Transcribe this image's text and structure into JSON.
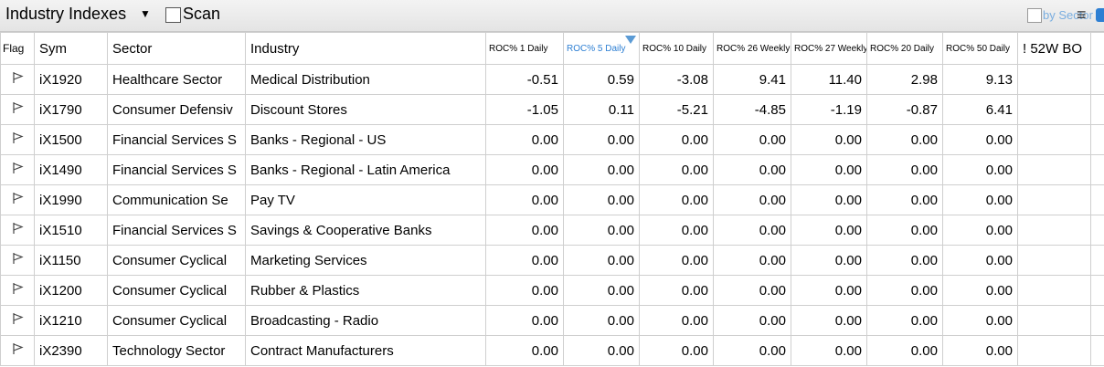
{
  "header": {
    "title": "Industry Indexes",
    "scan_label": "Scan",
    "by_sector_label": "by Sector"
  },
  "icons": {
    "caret": "dropdown-caret-icon",
    "menu": "menu-icon",
    "app": "blue-app-icon"
  },
  "colors": {
    "accent": "#2d7fd3",
    "by_sector": "#7aaee0"
  },
  "columns": {
    "flag": "Flag",
    "sym": "Sym",
    "sector": "Sector",
    "industry": "Industry",
    "roc1d": "ROC% 1 Daily",
    "roc5d": "ROC% 5 Daily",
    "roc10d": "ROC% 10 Daily",
    "roc26w": "ROC% 26 Weekly",
    "roc27w": "ROC% 27 Weekly",
    "roc20d": "ROC% 20 Daily",
    "roc50d": "ROC% 50 Daily",
    "bo52w": "! 52W BO"
  },
  "rows": [
    {
      "sym": "iX1920",
      "sector": "Healthcare Sector",
      "industry": "Medical Distribution",
      "roc1d": "-0.51",
      "roc5d": "0.59",
      "roc10d": "-3.08",
      "roc26w": "9.41",
      "roc27w": "11.40",
      "roc20d": "2.98",
      "roc50d": "9.13"
    },
    {
      "sym": "iX1790",
      "sector": "Consumer Defensiv",
      "industry": "Discount Stores",
      "roc1d": "-1.05",
      "roc5d": "0.11",
      "roc10d": "-5.21",
      "roc26w": "-4.85",
      "roc27w": "-1.19",
      "roc20d": "-0.87",
      "roc50d": "6.41"
    },
    {
      "sym": "iX1500",
      "sector": "Financial Services S",
      "industry": "Banks - Regional - US",
      "roc1d": "0.00",
      "roc5d": "0.00",
      "roc10d": "0.00",
      "roc26w": "0.00",
      "roc27w": "0.00",
      "roc20d": "0.00",
      "roc50d": "0.00"
    },
    {
      "sym": "iX1490",
      "sector": "Financial Services S",
      "industry": "Banks - Regional - Latin America",
      "roc1d": "0.00",
      "roc5d": "0.00",
      "roc10d": "0.00",
      "roc26w": "0.00",
      "roc27w": "0.00",
      "roc20d": "0.00",
      "roc50d": "0.00"
    },
    {
      "sym": "iX1990",
      "sector": "Communication Se",
      "industry": "Pay TV",
      "roc1d": "0.00",
      "roc5d": "0.00",
      "roc10d": "0.00",
      "roc26w": "0.00",
      "roc27w": "0.00",
      "roc20d": "0.00",
      "roc50d": "0.00"
    },
    {
      "sym": "iX1510",
      "sector": "Financial Services S",
      "industry": "Savings & Cooperative Banks",
      "roc1d": "0.00",
      "roc5d": "0.00",
      "roc10d": "0.00",
      "roc26w": "0.00",
      "roc27w": "0.00",
      "roc20d": "0.00",
      "roc50d": "0.00"
    },
    {
      "sym": "iX1150",
      "sector": "Consumer Cyclical",
      "industry": "Marketing Services",
      "roc1d": "0.00",
      "roc5d": "0.00",
      "roc10d": "0.00",
      "roc26w": "0.00",
      "roc27w": "0.00",
      "roc20d": "0.00",
      "roc50d": "0.00"
    },
    {
      "sym": "iX1200",
      "sector": "Consumer Cyclical",
      "industry": "Rubber & Plastics",
      "roc1d": "0.00",
      "roc5d": "0.00",
      "roc10d": "0.00",
      "roc26w": "0.00",
      "roc27w": "0.00",
      "roc20d": "0.00",
      "roc50d": "0.00"
    },
    {
      "sym": "iX1210",
      "sector": "Consumer Cyclical",
      "industry": "Broadcasting - Radio",
      "roc1d": "0.00",
      "roc5d": "0.00",
      "roc10d": "0.00",
      "roc26w": "0.00",
      "roc27w": "0.00",
      "roc20d": "0.00",
      "roc50d": "0.00"
    },
    {
      "sym": "iX2390",
      "sector": "Technology Sector",
      "industry": "Contract Manufacturers",
      "roc1d": "0.00",
      "roc5d": "0.00",
      "roc10d": "0.00",
      "roc26w": "0.00",
      "roc27w": "0.00",
      "roc20d": "0.00",
      "roc50d": "0.00"
    }
  ]
}
